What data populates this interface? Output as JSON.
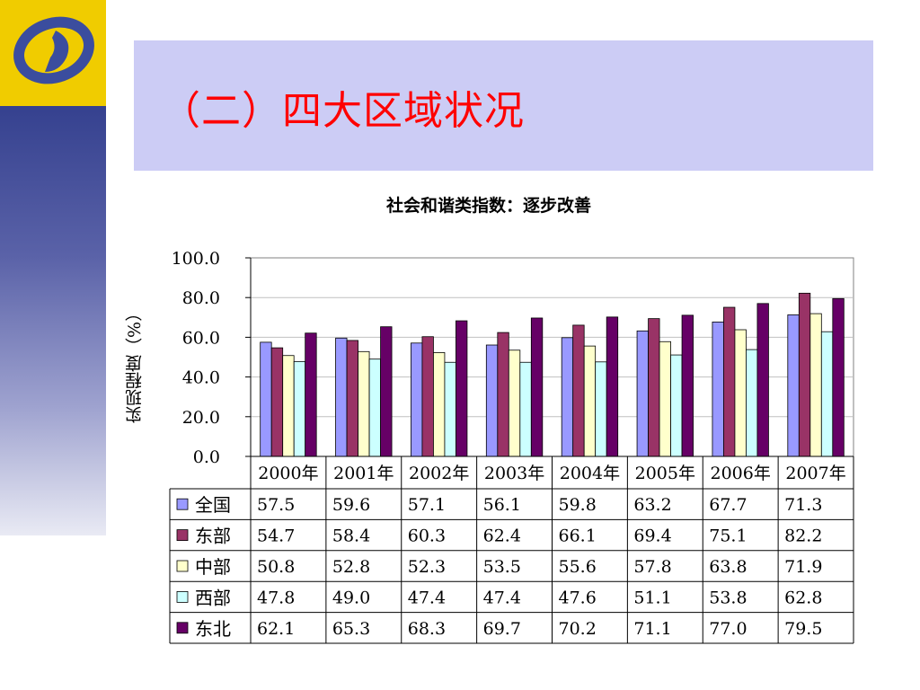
{
  "slide": {
    "title": "（二）四大区域状况"
  },
  "logo": {
    "icon": "stats-bureau-logo-icon"
  },
  "chart_data": {
    "type": "bar",
    "title": "社会和谐类指数：逐步改善",
    "xlabel": "",
    "ylabel": "实现程度（%）",
    "ylim": [
      0,
      100
    ],
    "yticks": [
      "0.0",
      "20.0",
      "40.0",
      "60.0",
      "80.0",
      "100.0"
    ],
    "categories": [
      "2000年",
      "2001年",
      "2002年",
      "2003年",
      "2004年",
      "2005年",
      "2006年",
      "2007年"
    ],
    "series": [
      {
        "name": "全国",
        "color": "#9999ff",
        "values": [
          57.5,
          59.6,
          57.1,
          56.1,
          59.8,
          63.2,
          67.7,
          71.3
        ]
      },
      {
        "name": "东部",
        "color": "#993366",
        "values": [
          54.7,
          58.4,
          60.3,
          62.4,
          66.1,
          69.4,
          75.1,
          82.2
        ]
      },
      {
        "name": "中部",
        "color": "#ffffcc",
        "values": [
          50.8,
          52.8,
          52.3,
          53.5,
          55.6,
          57.8,
          63.8,
          71.9
        ]
      },
      {
        "name": "西部",
        "color": "#ccffff",
        "values": [
          47.8,
          49.0,
          47.4,
          47.4,
          47.6,
          51.1,
          53.8,
          62.8
        ]
      },
      {
        "name": "东北",
        "color": "#660066",
        "values": [
          62.1,
          65.3,
          68.3,
          69.7,
          70.2,
          71.1,
          77.0,
          79.5
        ]
      }
    ],
    "value_labels": [
      [
        "57.5",
        "59.6",
        "57.1",
        "56.1",
        "59.8",
        "63.2",
        "67.7",
        "71.3"
      ],
      [
        "54.7",
        "58.4",
        "60.3",
        "62.4",
        "66.1",
        "69.4",
        "75.1",
        "82.2"
      ],
      [
        "50.8",
        "52.8",
        "52.3",
        "53.5",
        "55.6",
        "57.8",
        "63.8",
        "71.9"
      ],
      [
        "47.8",
        "49.0",
        "47.4",
        "47.4",
        "47.6",
        "51.1",
        "53.8",
        "62.8"
      ],
      [
        "62.1",
        "65.3",
        "68.3",
        "69.7",
        "70.2",
        "71.1",
        "77.0",
        "79.5"
      ]
    ],
    "grid": true,
    "legend": "data-table-below"
  }
}
